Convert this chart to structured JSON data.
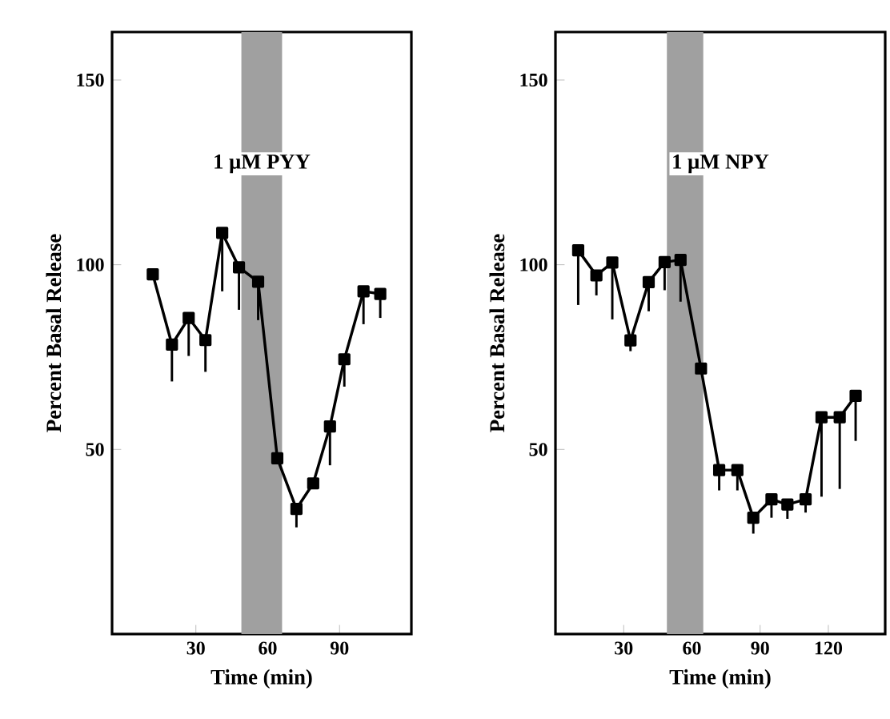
{
  "chart_data": [
    {
      "type": "line",
      "title": "1 μM PYY",
      "xlabel": "Time (min)",
      "ylabel": "Percent Basal Release",
      "x": [
        12,
        20,
        27,
        34,
        41,
        48,
        56,
        64,
        72,
        79,
        86,
        92,
        100,
        107
      ],
      "series": [
        {
          "color": "#000000",
          "values": [
            97.4,
            78.4,
            85.6,
            79.6,
            108.6,
            99.3,
            95.4,
            47.6,
            33.9,
            40.8,
            56.2,
            74.4,
            92.8,
            92.1
          ],
          "errors": [
            null,
            [
              68.4,
              78.4
            ],
            [
              75.3,
              85.6
            ],
            [
              71,
              79.6
            ],
            [
              92.8,
              108.6
            ],
            [
              87.8,
              99.3
            ],
            [
              85,
              95.4
            ],
            null,
            [
              28.9,
              33.9
            ],
            null,
            [
              45.7,
              56.2
            ],
            [
              67,
              74.4
            ],
            [
              83.9,
              92.8
            ],
            [
              85.6,
              92.1
            ]
          ]
        }
      ],
      "xlim": [
        -5,
        120
      ],
      "xticks": [
        30,
        60,
        90
      ],
      "ylim": [
        0,
        163
      ],
      "yticks": [
        50,
        100,
        150
      ],
      "bands": [
        {
          "axis": "x",
          "from": 49,
          "to": 66,
          "color": "#a0a0a0"
        }
      ],
      "marker": "square",
      "line_style": "solid",
      "grid": false
    },
    {
      "type": "line",
      "title": "1 μM NPY",
      "xlabel": "Time (min)",
      "ylabel": "Percent Basal Release",
      "x": [
        10,
        18,
        25,
        33,
        41,
        48,
        55,
        64,
        72,
        80,
        87,
        95,
        102,
        110,
        117,
        125,
        132
      ],
      "series": [
        {
          "color": "#000000",
          "values": [
            103.9,
            97.1,
            100.6,
            79.5,
            95.3,
            100.7,
            101.3,
            71.9,
            44.4,
            44.4,
            31.5,
            36.5,
            35.1,
            36.5,
            58.7,
            58.7,
            64.5
          ],
          "errors": [
            [
              89.1,
              103.9
            ],
            [
              91.7,
              97.1
            ],
            [
              85.2,
              100.6
            ],
            [
              76.6,
              79.5
            ],
            [
              87.4,
              95.3
            ],
            [
              93.1,
              100.7
            ],
            [
              90,
              101.3
            ],
            null,
            [
              38.9,
              44.4
            ],
            [
              38.9,
              44.4
            ],
            [
              27.2,
              31.5
            ],
            [
              31.5,
              36.5
            ],
            [
              31.2,
              35.1
            ],
            [
              32.9,
              36.5
            ],
            [
              37.2,
              58.7
            ],
            [
              39.3,
              58.7
            ],
            [
              52.3,
              64.5
            ]
          ]
        }
      ],
      "xlim": [
        0,
        145
      ],
      "xticks": [
        30,
        60,
        90,
        120
      ],
      "ylim": [
        0,
        163
      ],
      "yticks": [
        50,
        100,
        150
      ],
      "bands": [
        {
          "axis": "x",
          "from": 49,
          "to": 65,
          "color": "#a0a0a0"
        }
      ],
      "marker": "square",
      "line_style": "solid",
      "grid": false
    }
  ]
}
